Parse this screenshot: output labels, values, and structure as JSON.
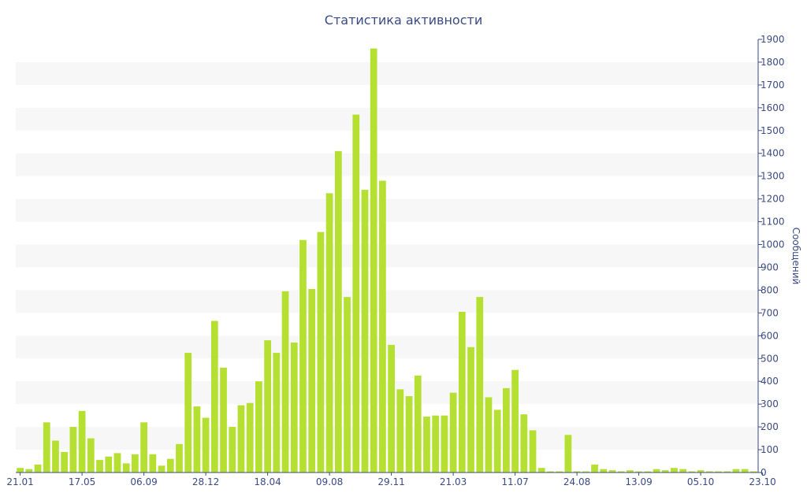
{
  "chart_data": {
    "type": "bar",
    "title": "Статистика активности",
    "ylabel": "Сообщений",
    "xlabel": "",
    "ylim": [
      0,
      1900
    ],
    "yticks": [
      0,
      100,
      200,
      300,
      400,
      500,
      600,
      700,
      800,
      900,
      1000,
      1100,
      1200,
      1300,
      1400,
      1500,
      1600,
      1700,
      1800,
      1900
    ],
    "x_tick_labels": [
      {
        "index": 0,
        "label": "21.01"
      },
      {
        "index": 7,
        "label": "17.05"
      },
      {
        "index": 14,
        "label": "06.09"
      },
      {
        "index": 21,
        "label": "28.12"
      },
      {
        "index": 28,
        "label": "18.04"
      },
      {
        "index": 35,
        "label": "09.08"
      },
      {
        "index": 42,
        "label": "29.11"
      },
      {
        "index": 49,
        "label": "21.03"
      },
      {
        "index": 56,
        "label": "11.07"
      },
      {
        "index": 63,
        "label": "24.08"
      },
      {
        "index": 70,
        "label": "13.09"
      },
      {
        "index": 77,
        "label": "05.10"
      },
      {
        "index": 84,
        "label": "23.10"
      }
    ],
    "values": [
      20,
      15,
      35,
      220,
      140,
      90,
      200,
      270,
      150,
      55,
      70,
      85,
      40,
      80,
      220,
      80,
      30,
      60,
      125,
      525,
      290,
      240,
      665,
      460,
      200,
      295,
      305,
      400,
      580,
      525,
      795,
      570,
      1020,
      805,
      1055,
      1225,
      1410,
      770,
      1570,
      1240,
      1860,
      1280,
      560,
      365,
      335,
      425,
      245,
      250,
      250,
      350,
      705,
      550,
      770,
      330,
      275,
      370,
      450,
      255,
      185,
      20,
      5,
      5,
      165,
      5,
      5,
      35,
      15,
      10,
      5,
      10,
      5,
      5,
      15,
      10,
      20,
      15,
      5,
      10,
      5,
      5,
      5,
      15,
      15,
      5
    ],
    "bar_color": "#b5e032",
    "band_color": "#f7f7f7",
    "axis_color": "#3a4a86",
    "grid": "alternating-bands",
    "y_axis_position": "right"
  }
}
